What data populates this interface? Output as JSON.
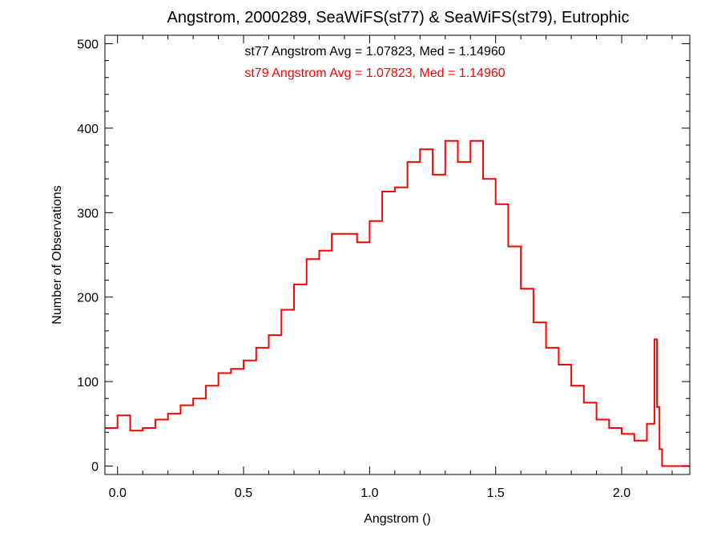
{
  "chart_data": {
    "type": "line",
    "title": "Angstrom, 2000289, SeaWiFS(st77) & SeaWiFS(st79), Eutrophic",
    "xlabel": "Angstrom ()",
    "ylabel": "Number of Observations",
    "xlim": [
      -0.05,
      2.27
    ],
    "ylim": [
      -10,
      510
    ],
    "xticks": [
      0.0,
      0.5,
      1.0,
      1.5,
      2.0
    ],
    "xtick_labels": [
      "0.0",
      "0.5",
      "1.0",
      "1.5",
      "2.0"
    ],
    "yticks": [
      0,
      100,
      200,
      300,
      400,
      500
    ],
    "ytick_labels": [
      "0",
      "100",
      "200",
      "300",
      "400",
      "500"
    ],
    "grid": false,
    "annotations": [
      {
        "text": "st77 Angstrom Avg = 1.07823, Med = 1.14960",
        "color": "#000000"
      },
      {
        "text": "st79 Angstrom Avg = 1.07823, Med = 1.14960",
        "color": "#ff0000"
      }
    ],
    "series": [
      {
        "color": "#ff0000",
        "step": "histogram",
        "x": [
          -0.05,
          0.0,
          0.05,
          0.1,
          0.15,
          0.2,
          0.25,
          0.3,
          0.35,
          0.4,
          0.45,
          0.5,
          0.55,
          0.6,
          0.65,
          0.7,
          0.75,
          0.8,
          0.85,
          0.9,
          0.95,
          1.0,
          1.05,
          1.1,
          1.15,
          1.2,
          1.25,
          1.3,
          1.35,
          1.4,
          1.45,
          1.5,
          1.55,
          1.6,
          1.65,
          1.7,
          1.75,
          1.8,
          1.85,
          1.9,
          1.95,
          2.0,
          2.05,
          2.1,
          2.13,
          2.14,
          2.15,
          2.16,
          2.27
        ],
        "y": [
          45,
          60,
          42,
          45,
          55,
          62,
          72,
          80,
          95,
          110,
          115,
          125,
          140,
          155,
          185,
          215,
          245,
          255,
          275,
          275,
          265,
          290,
          325,
          330,
          360,
          375,
          345,
          385,
          360,
          385,
          340,
          310,
          260,
          210,
          170,
          140,
          120,
          95,
          75,
          55,
          45,
          38,
          30,
          50,
          150,
          70,
          20,
          0,
          0
        ]
      }
    ]
  }
}
